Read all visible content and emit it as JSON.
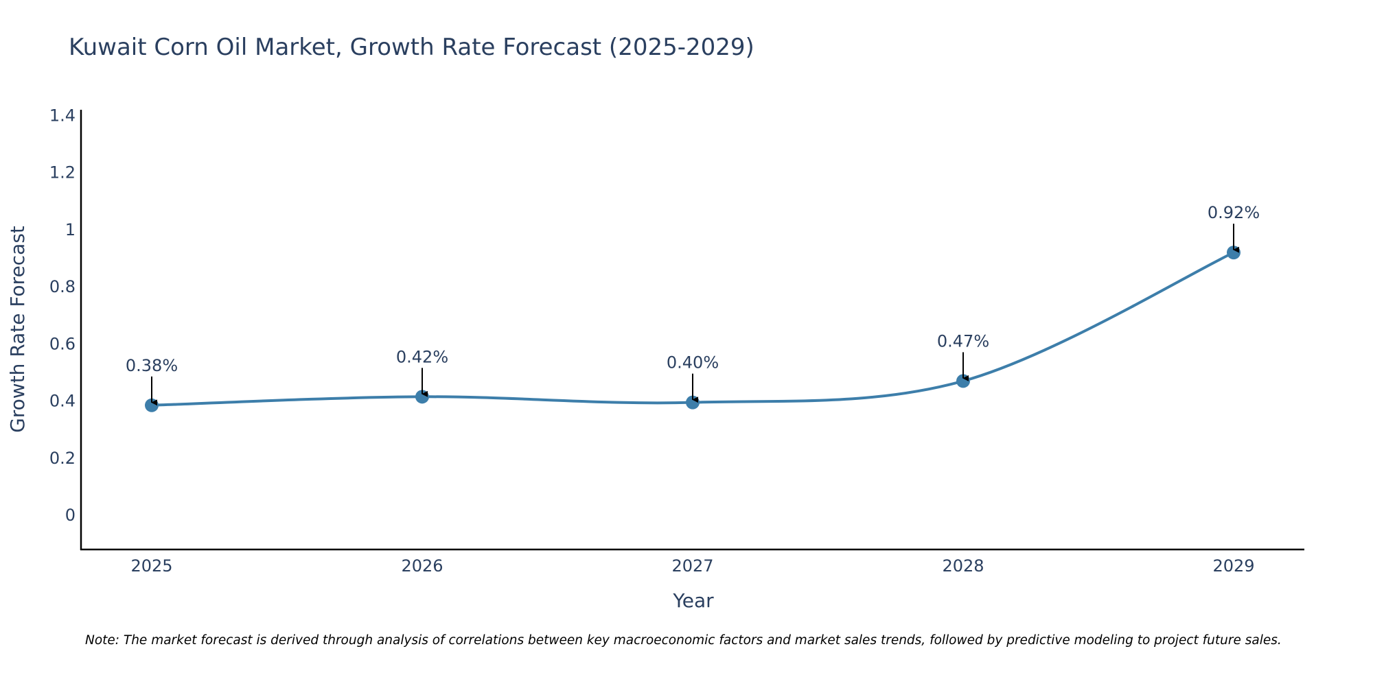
{
  "chart_data": {
    "type": "line",
    "title": "Kuwait Corn Oil Market, Growth Rate Forecast (2025-2029)",
    "xlabel": "Year",
    "ylabel": "Growth Rate Forecast",
    "categories": [
      "2025",
      "2026",
      "2027",
      "2028",
      "2029"
    ],
    "series": [
      {
        "name": "Growth Rate Forecast",
        "values": [
          0.385,
          0.415,
          0.395,
          0.47,
          0.92
        ],
        "labels": [
          "0.38%",
          "0.42%",
          "0.40%",
          "0.47%",
          "0.92%"
        ],
        "color": "#3d7eaa"
      }
    ],
    "y_ticks": [
      0,
      0.2,
      0.4,
      0.6,
      0.8,
      1,
      1.2,
      1.4
    ],
    "y_tick_labels": [
      "0",
      "0.2",
      "0.4",
      "0.6",
      "0.8",
      "1",
      "1.2",
      "1.4"
    ],
    "ylim": [
      -0.12,
      1.42
    ],
    "grid": false,
    "line_shape": "spline",
    "annotation_arrows": true
  },
  "note": "Note: The market forecast is derived through analysis of correlations between key macroeconomic factors and market sales trends, followed by predictive modeling to project future sales."
}
